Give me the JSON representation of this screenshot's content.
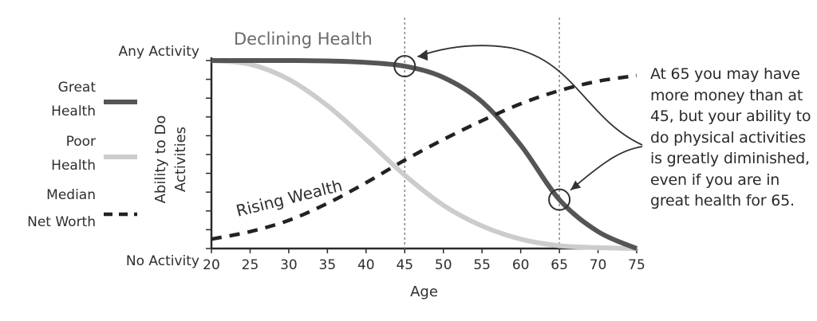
{
  "chart_data": {
    "type": "line",
    "title": "",
    "xlabel": "Age",
    "ylabel": "Ability to Do Activities",
    "xlim": [
      20,
      75
    ],
    "x_ticks": [
      20,
      25,
      30,
      35,
      40,
      45,
      50,
      55,
      60,
      65,
      70,
      75
    ],
    "ylim": [
      0,
      100
    ],
    "y_top_label": "Any Activity",
    "y_bottom_label": "No Activity",
    "reference_lines_x": [
      45,
      65
    ],
    "grid": false,
    "series": [
      {
        "name": "Great Health",
        "color": "#555555",
        "style": "solid",
        "x": [
          20,
          25,
          30,
          35,
          40,
          45,
          50,
          55,
          60,
          65,
          70,
          75
        ],
        "y": [
          100,
          100,
          100,
          99.8,
          99,
          97,
          91,
          78,
          55,
          26,
          9,
          0
        ]
      },
      {
        "name": "Poor Health",
        "color": "#cccccc",
        "style": "solid",
        "x": [
          20,
          25,
          30,
          35,
          40,
          45,
          50,
          55,
          60,
          65,
          70,
          75
        ],
        "y": [
          100,
          98,
          90,
          76,
          58,
          39,
          23,
          12,
          5,
          1.5,
          0.5,
          0
        ]
      },
      {
        "name": "Median Net Worth",
        "color": "#222222",
        "style": "dashed",
        "x": [
          20,
          25,
          30,
          35,
          40,
          45,
          50,
          55,
          60,
          65,
          70,
          75
        ],
        "y": [
          5,
          9,
          15,
          24,
          35,
          47,
          58,
          68,
          77,
          84,
          89,
          92
        ]
      }
    ],
    "legend": {
      "placement": "left",
      "entries": [
        {
          "label": [
            "Great",
            "Health"
          ],
          "color": "#555555",
          "style": "solid"
        },
        {
          "label": [
            "Poor",
            "Health"
          ],
          "color": "#cccccc",
          "style": "solid"
        },
        {
          "label": [
            "Median",
            "Net Worth"
          ],
          "color": "#222222",
          "style": "dashed"
        }
      ]
    },
    "annotations": {
      "declining_label": "Declining Health",
      "rising_label": "Rising Wealth",
      "callout": "At 65 you may have more money than at 45, but your ability to do physical activities is greatly diminished, even if you are in great health for 65.",
      "circled_points": [
        {
          "series": "Great Health",
          "x": 45
        },
        {
          "series": "Great Health",
          "x": 65
        }
      ]
    }
  }
}
